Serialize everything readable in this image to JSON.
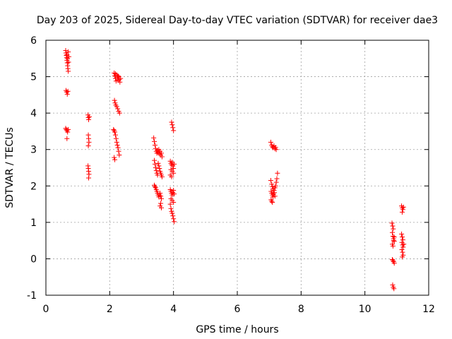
{
  "chart_data": {
    "type": "scatter",
    "title": "Day 203 of 2025, Sidereal Day-to-day VTEC variation (SDTVAR) for receiver dae3",
    "xlabel": "GPS time / hours",
    "ylabel": "SDTVAR / TECUs",
    "xlim": [
      0,
      12
    ],
    "ylim": [
      -1,
      6
    ],
    "xticks": [
      0,
      2,
      4,
      6,
      8,
      10,
      12
    ],
    "yticks": [
      -1,
      0,
      1,
      2,
      3,
      4,
      5,
      6
    ],
    "grid": true,
    "marker": "plus",
    "color": "#ff0000",
    "series": [
      {
        "name": "SDTVAR",
        "points": [
          [
            0.62,
            5.72
          ],
          [
            0.63,
            5.65
          ],
          [
            0.64,
            5.58
          ],
          [
            0.65,
            5.52
          ],
          [
            0.66,
            5.45
          ],
          [
            0.67,
            5.38
          ],
          [
            0.68,
            5.3
          ],
          [
            0.69,
            5.22
          ],
          [
            0.7,
            5.15
          ],
          [
            0.66,
            5.6
          ],
          [
            0.68,
            5.5
          ],
          [
            0.71,
            5.4
          ],
          [
            0.72,
            5.55
          ],
          [
            0.7,
            5.68
          ],
          [
            0.63,
            4.62
          ],
          [
            0.65,
            4.58
          ],
          [
            0.67,
            4.52
          ],
          [
            0.69,
            4.6
          ],
          [
            0.62,
            3.58
          ],
          [
            0.64,
            3.55
          ],
          [
            0.66,
            3.52
          ],
          [
            0.68,
            3.48
          ],
          [
            0.7,
            3.55
          ],
          [
            0.66,
            3.3
          ],
          [
            1.32,
            3.95
          ],
          [
            1.33,
            3.88
          ],
          [
            1.34,
            3.82
          ],
          [
            1.36,
            3.9
          ],
          [
            1.33,
            3.4
          ],
          [
            1.34,
            3.3
          ],
          [
            1.35,
            3.2
          ],
          [
            1.33,
            3.1
          ],
          [
            1.32,
            2.55
          ],
          [
            1.33,
            2.48
          ],
          [
            1.34,
            2.4
          ],
          [
            1.35,
            2.32
          ],
          [
            1.34,
            2.22
          ],
          [
            2.14,
            5.1
          ],
          [
            2.16,
            5.02
          ],
          [
            2.18,
            4.95
          ],
          [
            2.2,
            4.88
          ],
          [
            2.22,
            5.05
          ],
          [
            2.24,
            4.98
          ],
          [
            2.26,
            4.9
          ],
          [
            2.28,
            5.0
          ],
          [
            2.3,
            4.92
          ],
          [
            2.32,
            4.85
          ],
          [
            2.34,
            4.95
          ],
          [
            2.18,
            5.08
          ],
          [
            2.26,
            5.02
          ],
          [
            2.15,
            4.35
          ],
          [
            2.17,
            4.28
          ],
          [
            2.19,
            4.22
          ],
          [
            2.22,
            4.18
          ],
          [
            2.25,
            4.12
          ],
          [
            2.28,
            4.05
          ],
          [
            2.31,
            4.0
          ],
          [
            2.12,
            3.55
          ],
          [
            2.14,
            3.52
          ],
          [
            2.16,
            3.48
          ],
          [
            2.18,
            3.4
          ],
          [
            2.2,
            3.3
          ],
          [
            2.22,
            3.2
          ],
          [
            2.24,
            3.12
          ],
          [
            2.26,
            3.05
          ],
          [
            2.28,
            2.95
          ],
          [
            2.3,
            2.85
          ],
          [
            2.14,
            2.78
          ],
          [
            2.16,
            2.72
          ],
          [
            3.38,
            3.32
          ],
          [
            3.4,
            3.22
          ],
          [
            3.42,
            3.12
          ],
          [
            3.44,
            3.02
          ],
          [
            3.46,
            2.95
          ],
          [
            3.48,
            2.9
          ],
          [
            3.5,
            2.98
          ],
          [
            3.52,
            2.92
          ],
          [
            3.54,
            3.0
          ],
          [
            3.56,
            2.88
          ],
          [
            3.58,
            2.95
          ],
          [
            3.6,
            2.85
          ],
          [
            3.62,
            2.9
          ],
          [
            3.64,
            2.8
          ],
          [
            3.4,
            2.7
          ],
          [
            3.42,
            2.6
          ],
          [
            3.44,
            2.5
          ],
          [
            3.46,
            2.42
          ],
          [
            3.48,
            2.35
          ],
          [
            3.5,
            2.3
          ],
          [
            3.52,
            2.62
          ],
          [
            3.54,
            2.55
          ],
          [
            3.56,
            2.48
          ],
          [
            3.58,
            2.4
          ],
          [
            3.6,
            2.35
          ],
          [
            3.62,
            2.3
          ],
          [
            3.64,
            2.25
          ],
          [
            3.4,
            2.02
          ],
          [
            3.42,
            1.98
          ],
          [
            3.44,
            1.95
          ],
          [
            3.46,
            1.9
          ],
          [
            3.48,
            1.85
          ],
          [
            3.5,
            1.8
          ],
          [
            3.52,
            1.75
          ],
          [
            3.54,
            1.7
          ],
          [
            3.56,
            1.75
          ],
          [
            3.58,
            1.8
          ],
          [
            3.6,
            1.72
          ],
          [
            3.62,
            1.65
          ],
          [
            3.6,
            1.52
          ],
          [
            3.58,
            1.45
          ],
          [
            3.62,
            1.4
          ],
          [
            3.9,
            2.68
          ],
          [
            3.92,
            2.62
          ],
          [
            3.94,
            2.58
          ],
          [
            3.96,
            2.65
          ],
          [
            3.98,
            2.55
          ],
          [
            4.0,
            2.48
          ],
          [
            4.02,
            2.6
          ],
          [
            3.92,
            2.45
          ],
          [
            3.96,
            2.4
          ],
          [
            4.0,
            2.35
          ],
          [
            3.9,
            2.3
          ],
          [
            3.94,
            2.25
          ],
          [
            3.9,
            1.9
          ],
          [
            3.92,
            1.85
          ],
          [
            3.94,
            1.8
          ],
          [
            3.96,
            1.75
          ],
          [
            3.98,
            1.82
          ],
          [
            4.0,
            1.88
          ],
          [
            4.02,
            1.78
          ],
          [
            3.92,
            1.65
          ],
          [
            3.96,
            1.6
          ],
          [
            4.0,
            1.55
          ],
          [
            3.9,
            1.5
          ],
          [
            3.92,
            1.38
          ],
          [
            3.94,
            1.3
          ],
          [
            3.96,
            1.25
          ],
          [
            3.98,
            1.18
          ],
          [
            4.0,
            1.1
          ],
          [
            4.02,
            1.02
          ],
          [
            3.94,
            3.75
          ],
          [
            3.96,
            3.68
          ],
          [
            3.98,
            3.6
          ],
          [
            4.0,
            3.52
          ],
          [
            7.05,
            3.2
          ],
          [
            7.08,
            3.12
          ],
          [
            7.1,
            3.08
          ],
          [
            7.12,
            3.05
          ],
          [
            7.15,
            3.1
          ],
          [
            7.18,
            3.02
          ],
          [
            7.2,
            3.06
          ],
          [
            7.22,
            3.0
          ],
          [
            7.05,
            2.15
          ],
          [
            7.08,
            2.05
          ],
          [
            7.1,
            1.98
          ],
          [
            7.12,
            1.92
          ],
          [
            7.15,
            1.88
          ],
          [
            7.18,
            1.95
          ],
          [
            7.2,
            2.0
          ],
          [
            7.22,
            2.1
          ],
          [
            7.24,
            2.2
          ],
          [
            7.26,
            2.35
          ],
          [
            7.06,
            1.85
          ],
          [
            7.08,
            1.8
          ],
          [
            7.1,
            1.75
          ],
          [
            7.12,
            1.7
          ],
          [
            7.14,
            1.78
          ],
          [
            7.16,
            1.82
          ],
          [
            7.18,
            1.72
          ],
          [
            7.06,
            1.62
          ],
          [
            7.08,
            1.58
          ],
          [
            7.1,
            1.55
          ],
          [
            10.85,
            0.98
          ],
          [
            10.87,
            0.9
          ],
          [
            10.89,
            0.82
          ],
          [
            10.86,
            0.72
          ],
          [
            10.88,
            0.62
          ],
          [
            10.9,
            0.55
          ],
          [
            10.92,
            0.48
          ],
          [
            10.86,
            0.4
          ],
          [
            10.88,
            0.35
          ],
          [
            10.9,
            0.5
          ],
          [
            10.92,
            0.6
          ],
          [
            10.86,
            -0.02
          ],
          [
            10.88,
            -0.05
          ],
          [
            10.9,
            -0.08
          ],
          [
            10.92,
            -0.12
          ],
          [
            10.87,
            -0.72
          ],
          [
            10.89,
            -0.78
          ],
          [
            10.91,
            -0.82
          ],
          [
            11.15,
            1.45
          ],
          [
            11.17,
            1.4
          ],
          [
            11.19,
            1.35
          ],
          [
            11.21,
            1.42
          ],
          [
            11.17,
            1.28
          ],
          [
            11.15,
            0.68
          ],
          [
            11.17,
            0.6
          ],
          [
            11.19,
            0.52
          ],
          [
            11.16,
            0.45
          ],
          [
            11.18,
            0.38
          ],
          [
            11.2,
            0.32
          ],
          [
            11.22,
            0.4
          ],
          [
            11.16,
            0.25
          ],
          [
            11.18,
            0.18
          ],
          [
            11.2,
            0.1
          ],
          [
            11.17,
            0.05
          ]
        ]
      }
    ]
  }
}
